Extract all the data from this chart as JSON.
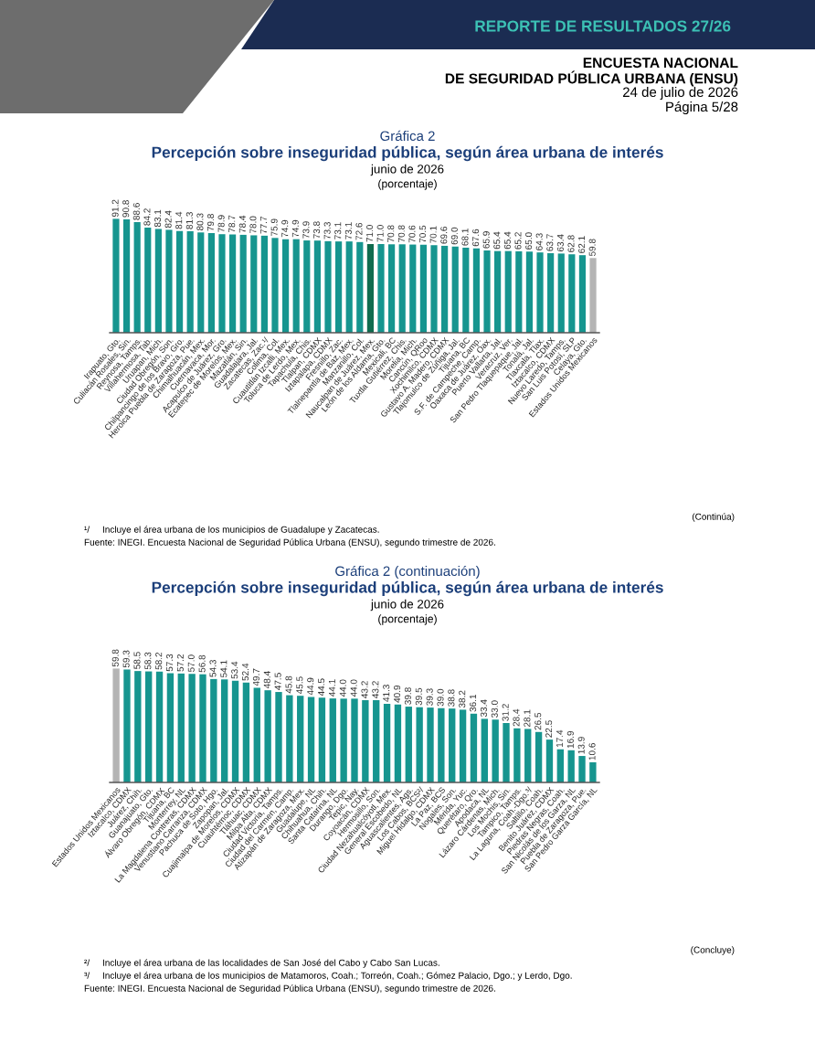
{
  "chart_data": [
    {
      "type": "bar",
      "title": "Percepción sobre inseguridad pública, según área urbana de interés",
      "subtitle": "junio de 2026",
      "annotations": [
        "REPORTE DE RESULTADOS 27/26",
        "ENCUESTA NACIONAL",
        "DE SEGURIDAD PÚBLICA URBANA (ENSU)",
        "24 de julio de 2026",
        "Página 5/28",
        "Gráfica 2",
        "(porcentaje)",
        "(Continúa)",
        "¹/     Incluye el área urbana de los municipios de Guadalupe y Zacatecas.",
        "Fuente: INEGI. Encuesta Nacional de Seguridad Pública Urbana (ENSU), segundo trimestre de 2026."
      ],
      "categories": [
        "Irapuato, Gto.",
        "Culiacán Rosales, Sin.",
        "Reynosa, Tamps.",
        "Villahermosa, Tab.",
        "Uruapan, Mich.",
        "Ciudad Obregón, Son.",
        "Chilpancingo de los Bravo, Gro.",
        "Heroica Puebla de Zaragoza, Pue.",
        "Chimalhuacán, Mex.",
        "Cuernavaca, Mor.",
        "Acapulco de Juárez, Gro.",
        "Ecatepec de Morelos, Mex.",
        "Mazatlán, Sin.",
        "Guadalajara, Jal.",
        "Zacatecas, Zac.¹/",
        "Colima, Col.",
        "Cuautitlán Izcalli, Mex.",
        "Toluca de Lerdo, Mex.",
        "Tapachula, Chis.",
        "Tlalpan, CDMX",
        "Iztapalapa, CDMX",
        "Fresnillo, Zac.",
        "Tlalnepantla de Baz, Mex.",
        "Manzanillo, Col.",
        "Naucalpan de Juárez, Mex.",
        "León de los Aldama, Gto.",
        "Mexicali, BC",
        "Tuxtla Gutiérrez, Chis.",
        "Morelia, Mich.",
        "Cancún, QRoo",
        "Xochimilco, CDMX",
        "Gustavo A. Madero, CDMX",
        "Tlajomulco de Zúñiga, Jal.",
        "Tijuana, BC",
        "S.F. de Campeche, Camp.",
        "Oaxaca de Juárez, Oax.",
        "Puerto Vallarta, Jal.",
        "Veracruz, Ver.",
        "San Pedro Tlaquepaque, Jal.",
        "Tonalá, Jal.",
        "Tlaxcala, Tlax.",
        "Iztacalco, CDMX",
        "Nuevo Laredo, Tamps.",
        "San Luis Potosí, SLP",
        "Celaya, Gto.",
        "Estados Unidos Mexicanos"
      ],
      "values": [
        91.2,
        90.8,
        88.6,
        84.2,
        83.1,
        82.4,
        81.4,
        81.3,
        80.3,
        79.8,
        78.9,
        78.7,
        78.4,
        78.0,
        77.7,
        75.9,
        74.9,
        74.9,
        73.9,
        73.8,
        73.3,
        73.1,
        73.1,
        72.6,
        71.0,
        71.0,
        70.8,
        70.8,
        70.6,
        70.5,
        70.1,
        69.6,
        69.0,
        68.1,
        67.6,
        65.9,
        65.4,
        65.4,
        65.2,
        65.0,
        64.3,
        63.7,
        63.4,
        62.8,
        62.1,
        59.8
      ],
      "colors": [
        "#16958f",
        "#16958f",
        "#16958f",
        "#16958f",
        "#16958f",
        "#16958f",
        "#16958f",
        "#16958f",
        "#16958f",
        "#16958f",
        "#16958f",
        "#16958f",
        "#16958f",
        "#16958f",
        "#16958f",
        "#16958f",
        "#16958f",
        "#16958f",
        "#16958f",
        "#16958f",
        "#16958f",
        "#16958f",
        "#16958f",
        "#16958f",
        "#0f6b4e",
        "#16958f",
        "#16958f",
        "#16958f",
        "#16958f",
        "#16958f",
        "#16958f",
        "#16958f",
        "#16958f",
        "#16958f",
        "#16958f",
        "#16958f",
        "#16958f",
        "#16958f",
        "#16958f",
        "#16958f",
        "#16958f",
        "#16958f",
        "#16958f",
        "#16958f",
        "#16958f",
        "#b4b4b4"
      ],
      "value_labels": [
        "91.2",
        "90.8",
        "88.6",
        "84.2",
        "83.1",
        "82.4",
        "81.4",
        "81.3",
        "80.3",
        "79.8",
        "78.9",
        "78.7",
        "78.4",
        "78.0",
        "77.7",
        "75.9",
        "74.9",
        "74.9",
        "73.9",
        "73.8",
        "73.3",
        "73.1",
        "73.1",
        "72.6",
        "71.0",
        "71.0",
        "70.8",
        "70.8",
        "70.6",
        "70.5",
        "70.1",
        "69.6",
        "69.0",
        "68.1",
        "67.6",
        "65.9",
        "65.4",
        "65.4",
        "65.2",
        "65.0",
        "64.3",
        "63.7",
        "63.4",
        "62.8",
        "62.1",
        "59.8"
      ]
    },
    {
      "type": "bar",
      "title": "Percepción sobre inseguridad pública, según área urbana de interés",
      "subtitle": "junio de 2026",
      "annotations": [
        "Gráfica 2 (continuación)",
        "(porcentaje)",
        "(Concluye)",
        "²/     Incluye el área urbana de las localidades de San José del Cabo y Cabo San Lucas.",
        "³/     Incluye el área urbana de los municipios de Matamoros, Coah.; Torreón, Coah.; Gómez Palacio, Dgo.; y Lerdo, Dgo.",
        "Fuente: INEGI. Encuesta Nacional de Seguridad Pública Urbana (ENSU), segundo trimestre de 2026."
      ],
      "categories": [
        "Estados Unidos Mexicanos",
        "Iztacalco, CDMX",
        "Juárez, Chih.",
        "Guanajuato, Gto.",
        "Álvaro Obregón, CDMX",
        "Tijuana, BC",
        "Monterrey, NL",
        "La Magdalena Contreras, CDMX",
        "Venustiano Carranza, CDMX",
        "Pachuca de Soto, Hgo.",
        "Zapopan, Jal.",
        "Cuajimalpa de Morelos, CDMX",
        "Cuauhtémoc, CDMX",
        "Tláhuac, CDMX",
        "Milpa Alta, CDMX",
        "Ciudad Victoria, Tamps.",
        "Ciudad del Carmen, Camp.",
        "Atizapán de Zaragoza, Mex.",
        "Guadalupe, NL",
        "Chihuahua, Chih.",
        "Santa Catarina, NL",
        "Durango, Dgo.",
        "Tepic, Nay.",
        "Coyoacán, CDMX",
        "Hermosillo, Son.",
        "Ciudad Nezahualcóyotl, Mex.",
        "General Escobedo, NL",
        "Aguascalientes, Ags.",
        "Los Cabos, BCS²/",
        "Miguel Hidalgo, CDMX",
        "La Paz, BCS",
        "Nogales, Son.",
        "Mérida, Yuc.",
        "Querétaro, Qro.",
        "Apodaca, NL",
        "Lázaro Cárdenas, Mich.",
        "Los Mochis, Sin.",
        "Tampico, Tamps.",
        "La Laguna, Coah.-Dgo.³/",
        "Saltillo, Coah.",
        "Benito Juárez, CDMX",
        "Piedras Negras, Coah.",
        "San Nicolás de los Garza, NL",
        "Puebla de Zaragoza, Pue.",
        "San Pedro Garza García, NL"
      ],
      "values": [
        59.8,
        59.3,
        58.5,
        58.3,
        58.2,
        57.3,
        57.2,
        57.0,
        56.8,
        54.3,
        54.1,
        53.4,
        52.4,
        49.7,
        48.4,
        47.5,
        45.8,
        45.5,
        44.9,
        44.5,
        44.1,
        44.0,
        44.0,
        43.2,
        43.2,
        41.3,
        40.9,
        39.8,
        39.5,
        39.3,
        39.0,
        38.8,
        38.2,
        36.1,
        33.4,
        33.0,
        31.2,
        28.4,
        28.1,
        26.5,
        22.5,
        17.4,
        16.9,
        13.9,
        10.6
      ],
      "colors": [
        "#b4b4b4",
        "#16958f",
        "#16958f",
        "#16958f",
        "#16958f",
        "#16958f",
        "#16958f",
        "#16958f",
        "#16958f",
        "#16958f",
        "#16958f",
        "#16958f",
        "#16958f",
        "#16958f",
        "#16958f",
        "#16958f",
        "#16958f",
        "#16958f",
        "#16958f",
        "#16958f",
        "#16958f",
        "#16958f",
        "#16958f",
        "#16958f",
        "#16958f",
        "#16958f",
        "#16958f",
        "#16958f",
        "#16958f",
        "#16958f",
        "#16958f",
        "#16958f",
        "#16958f",
        "#16958f",
        "#16958f",
        "#16958f",
        "#16958f",
        "#16958f",
        "#16958f",
        "#16958f",
        "#16958f",
        "#16958f",
        "#16958f",
        "#16958f",
        "#16958f"
      ],
      "value_labels": [
        "59.8",
        "59.3",
        "58.5",
        "58.3",
        "58.2",
        "57.3",
        "57.2",
        "57.0",
        "56.8",
        "54.3",
        "54.1",
        "53.4",
        "52.4",
        "49.7",
        "48.4",
        "47.5",
        "45.8",
        "45.5",
        "44.9",
        "44.5",
        "44.1",
        "44.0",
        "44.0",
        "43.2",
        "43.2",
        "41.3",
        "40.9",
        "39.8",
        "39.5",
        "39.3",
        "39.0",
        "38.8",
        "38.2",
        "36.1",
        "33.4",
        "33.0",
        "31.2",
        "28.4",
        "28.1",
        "26.5",
        "22.5",
        "17.4",
        "16.9",
        "13.9",
        "10.6"
      ]
    }
  ]
}
